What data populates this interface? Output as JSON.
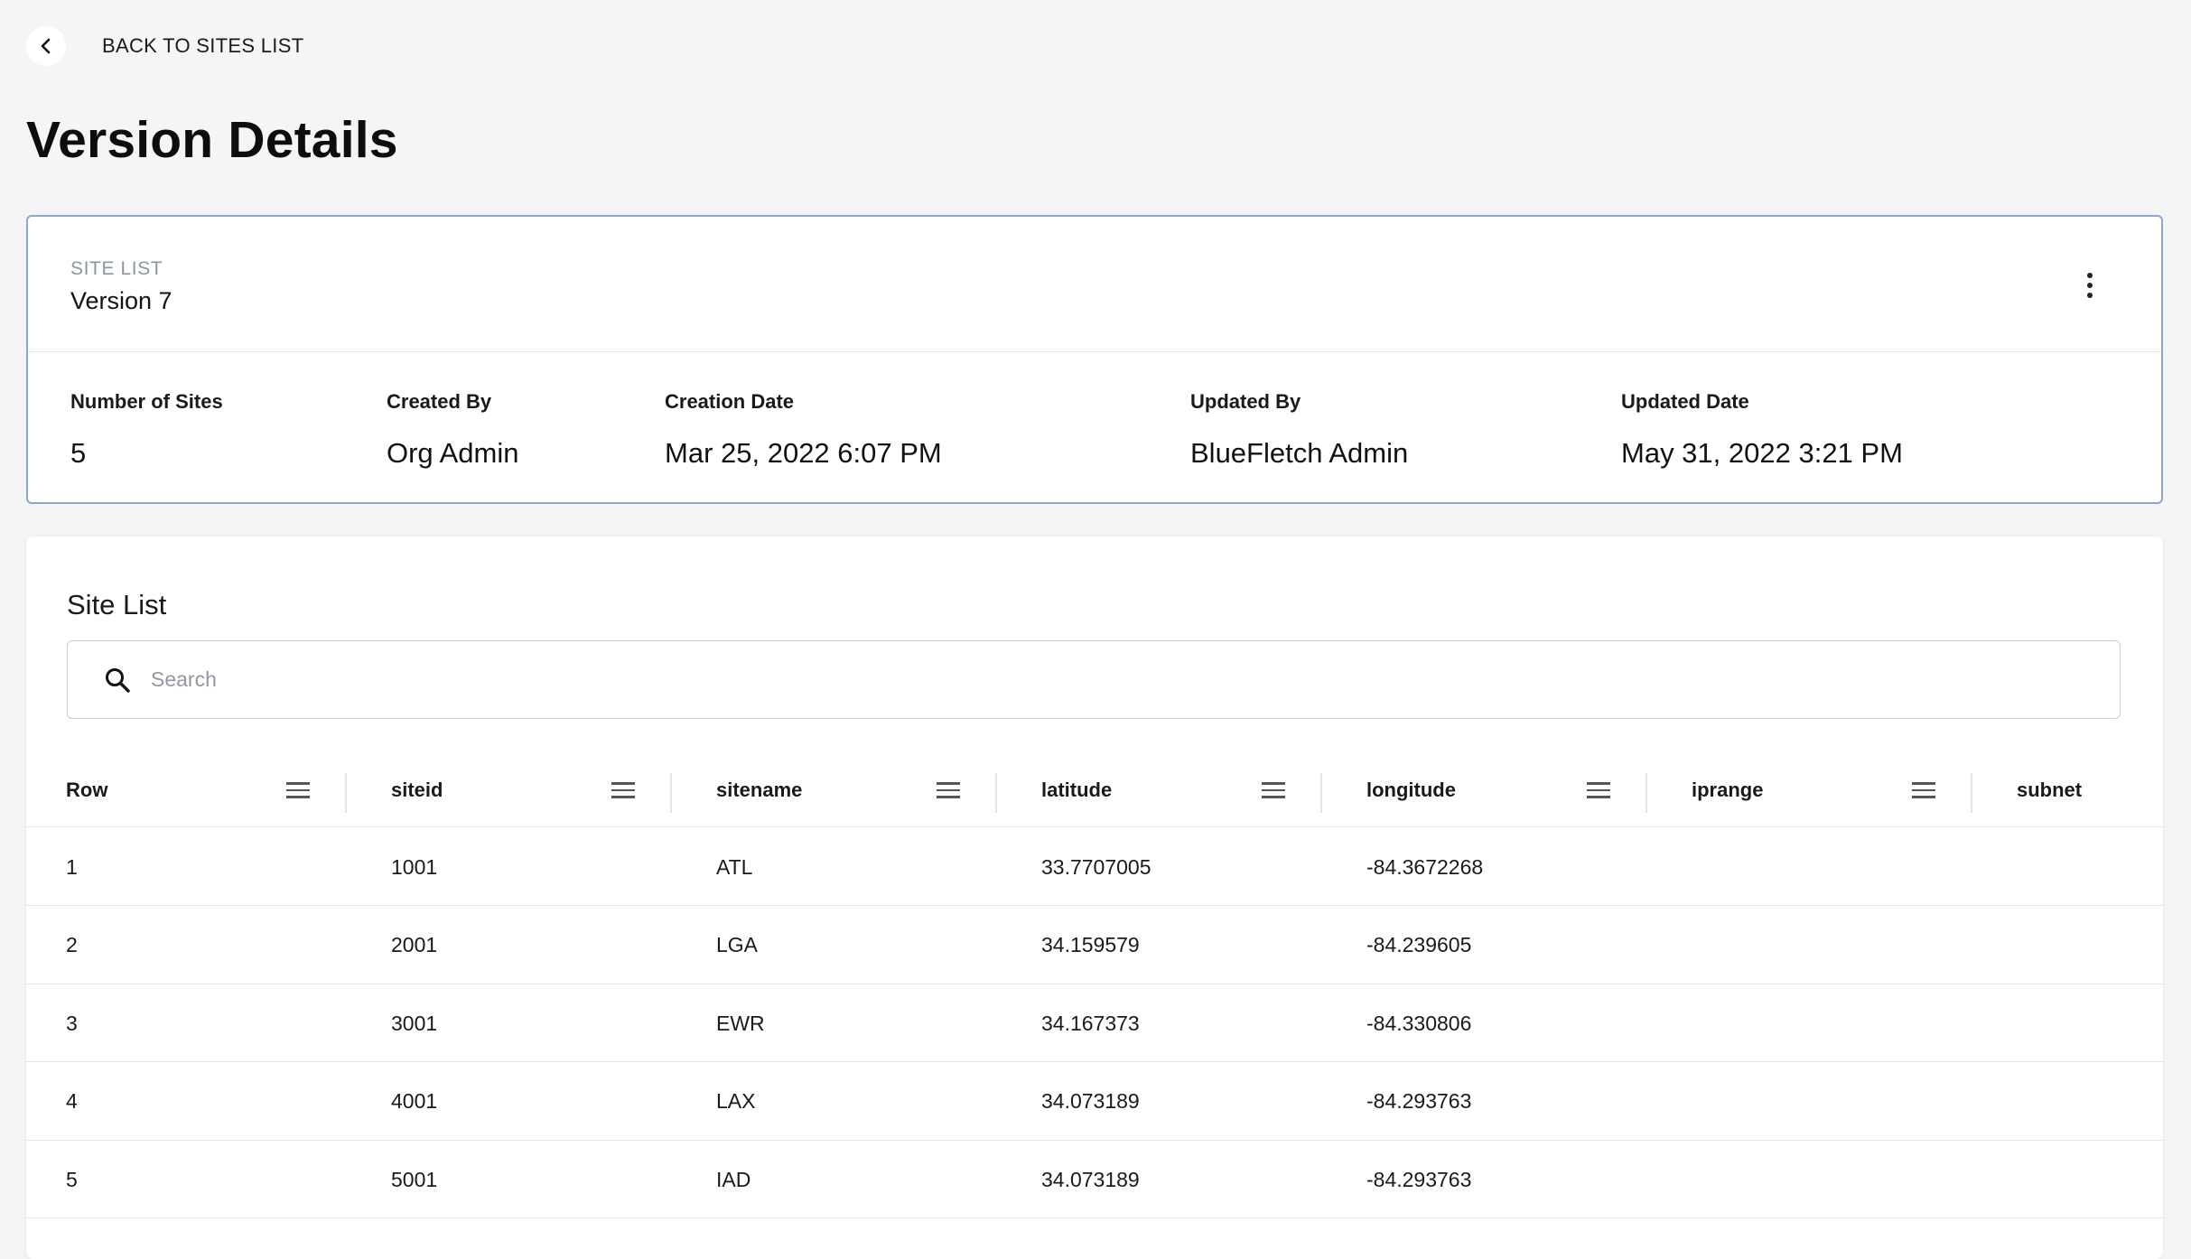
{
  "nav": {
    "back_label": "BACK TO SITES LIST"
  },
  "page": {
    "title": "Version Details"
  },
  "version_card": {
    "eyebrow": "SITE LIST",
    "version_name": "Version 7",
    "meta": [
      {
        "label": "Number of Sites",
        "value": "5"
      },
      {
        "label": "Created By",
        "value": "Org Admin"
      },
      {
        "label": "Creation Date",
        "value": "Mar 25, 2022 6:07 PM"
      },
      {
        "label": "Updated By",
        "value": "BlueFletch Admin"
      },
      {
        "label": "Updated Date",
        "value": "May 31, 2022 3:21 PM"
      }
    ]
  },
  "site_list": {
    "title": "Site List",
    "search_placeholder": "Search",
    "columns": [
      "Row",
      "siteid",
      "sitename",
      "latitude",
      "longitude",
      "iprange",
      "subnet"
    ],
    "rows": [
      [
        "1",
        "1001",
        "ATL",
        "33.7707005",
        "-84.3672268",
        "",
        ""
      ],
      [
        "2",
        "2001",
        "LGA",
        "34.159579",
        "-84.239605",
        "",
        ""
      ],
      [
        "3",
        "3001",
        "EWR",
        "34.167373",
        "-84.330806",
        "",
        ""
      ],
      [
        "4",
        "4001",
        "LAX",
        "34.073189",
        "-84.293763",
        "",
        ""
      ],
      [
        "5",
        "5001",
        "IAD",
        "34.073189",
        "-84.293763",
        "",
        ""
      ]
    ]
  },
  "icons": {
    "back": "chevron-left-icon",
    "more": "more-vertical-icon",
    "search": "search-icon",
    "column_menu": "column-menu-icon"
  },
  "colors": {
    "background": "#f4f5f7",
    "card_border": "#8fa5c9",
    "muted_text": "#8b96a5"
  }
}
